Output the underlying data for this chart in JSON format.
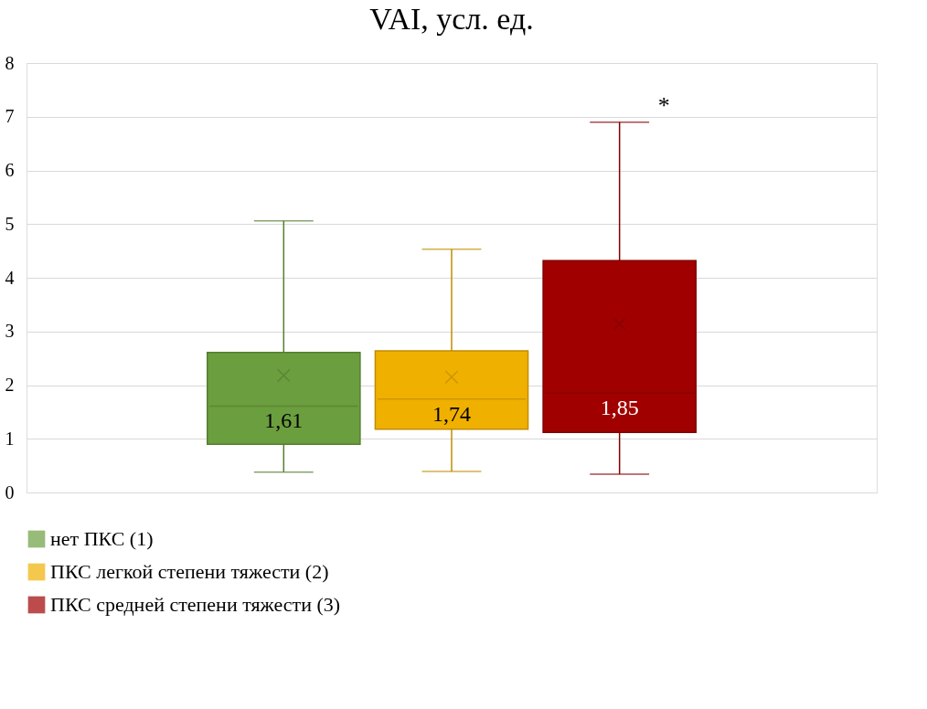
{
  "chart_data": {
    "type": "box",
    "title": "VAI, усл. ед.",
    "categories": [
      null
    ],
    "series": [
      {
        "name": "нет ПКС (1)",
        "color": "#6b9e3e",
        "boxes": [
          {
            "low": 0.38,
            "q1": 0.9,
            "median": 1.61,
            "q3": 2.61,
            "high": 5.06,
            "mean": 2.18
          }
        ],
        "value_labels": [
          "1,61"
        ]
      },
      {
        "name": "ПКС легкой степени тяжести (2)",
        "color": "#f0b000",
        "boxes": [
          {
            "low": 0.39,
            "q1": 1.18,
            "median": 1.74,
            "q3": 2.64,
            "high": 4.53,
            "mean": 2.15
          }
        ],
        "value_labels": [
          "1,74"
        ]
      },
      {
        "name": "ПКС средней степени тяжести (3)",
        "color": "#a00000",
        "boxes": [
          {
            "low": 0.34,
            "q1": 1.12,
            "median": 1.85,
            "q3": 4.32,
            "high": 6.9,
            "mean": 3.14
          }
        ],
        "value_labels": [
          "1,85"
        ]
      }
    ],
    "annotations": [
      "*"
    ],
    "ylim": [
      0,
      8
    ],
    "yticks": [
      0,
      1,
      2,
      3,
      4,
      5,
      6,
      7,
      8
    ],
    "grid": "y",
    "legend": "bottom",
    "tick_labels": "y"
  }
}
